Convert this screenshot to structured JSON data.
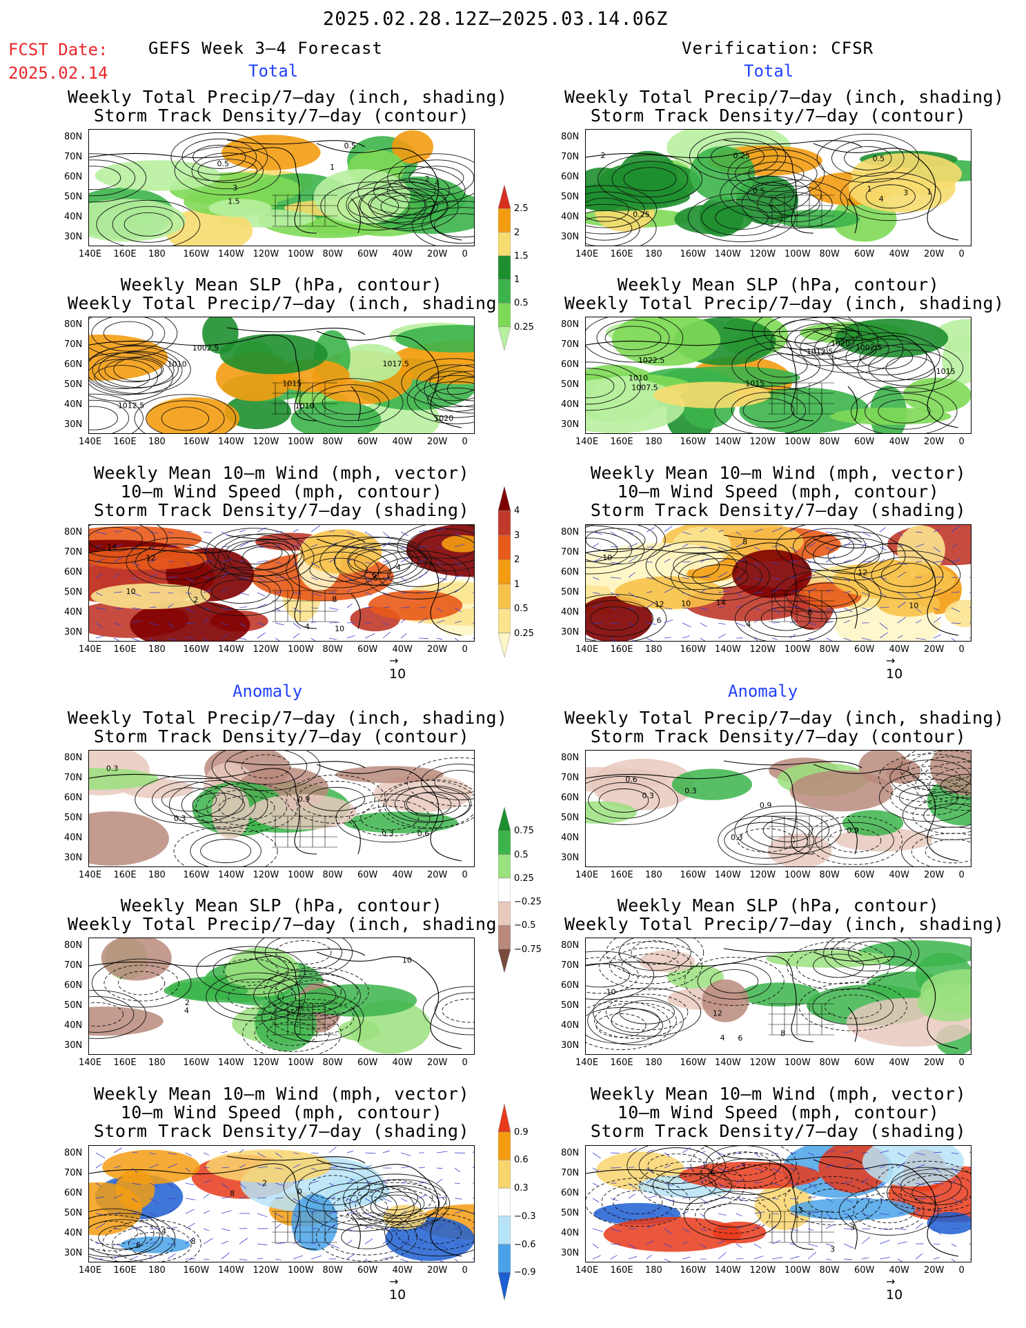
{
  "header": {
    "date_range": "2025.02.28.12Z–2025.03.14.06Z",
    "fcst_label": "FCST Date:",
    "fcst_date": "2025.02.14",
    "left_title": "GEFS Week 3–4 Forecast",
    "right_title": "Verification: CFSR"
  },
  "sections": {
    "total": "Total",
    "anomaly": "Anomaly"
  },
  "panel_titles": {
    "precip_storm": [
      "Weekly Total Precip/7–day (inch, shading)",
      "Storm Track Density/7–day (contour)"
    ],
    "slp_precip": [
      "Weekly Mean SLP (hPa, contour)",
      "Weekly Total Precip/7–day (inch, shading)"
    ],
    "wind_storm": [
      "Weekly Mean 10–m Wind (mph, vector)",
      "10–m Wind Speed (mph, contour)",
      "Storm Track Density/7–day (shading)"
    ]
  },
  "axes": {
    "lat_ticks": [
      "80N",
      "70N",
      "60N",
      "50N",
      "40N",
      "30N"
    ],
    "lon_ticks": [
      "140E",
      "160E",
      "180",
      "160W",
      "140W",
      "120W",
      "100W",
      "80W",
      "60W",
      "40W",
      "20W",
      "0"
    ]
  },
  "colorbars": {
    "precip_total": {
      "labels": [
        "2.5",
        "2",
        "1.5",
        "1",
        "0.5",
        "0.25"
      ],
      "colors": [
        "#d7301f",
        "#f39c12",
        "#f7dc6f",
        "#1e8f2f",
        "#3cb44b",
        "#7ed957",
        "#b8f0a0"
      ]
    },
    "storm_total": {
      "labels": [
        "4",
        "3",
        "2",
        "1",
        "0.5",
        "0.25"
      ],
      "colors": [
        "#7f0000",
        "#c0392b",
        "#e85a1a",
        "#f39c12",
        "#f7c24a",
        "#fbe38f",
        "#fff6c7"
      ]
    },
    "precip_anom": {
      "labels": [
        "0.75",
        "0.5",
        "0.25",
        "−0.25",
        "−0.5",
        "−0.75"
      ],
      "colors": [
        "#1e8f2f",
        "#3cb44b",
        "#9be07f",
        "#ffffff",
        "#e8c9bd",
        "#b98a7b",
        "#7a4a3c"
      ]
    },
    "storm_anom": {
      "labels": [
        "0.9",
        "0.6",
        "0.3",
        "−0.3",
        "−0.6",
        "−0.9"
      ],
      "colors": [
        "#e8391a",
        "#f39c12",
        "#f9d56e",
        "#ffffff",
        "#b6e3f7",
        "#4aa3e8",
        "#1d5fd1"
      ]
    }
  },
  "vector_ref": "10",
  "contour_labels": {
    "p1_left": [
      "0.5",
      "2",
      "1",
      "4",
      "3",
      "2",
      "1.5",
      "0.5"
    ],
    "p2_left": [
      "1010",
      "1002.5",
      "1020",
      "1012.5",
      "1015",
      "1017.5",
      "1010"
    ],
    "p3_left": [
      "6",
      "4",
      "2",
      "12",
      "8",
      "10",
      "14",
      "10",
      "4",
      "6"
    ],
    "p4_left": [
      "0.3",
      "0.6",
      "0.9",
      "0.3",
      "0.3"
    ],
    "p5_left": [
      "4",
      "2",
      "10"
    ],
    "p6_left": [
      "2",
      "0",
      "4",
      "8",
      "6",
      "8"
    ],
    "p1_right": [
      "0.5",
      "0.25",
      "4",
      "2",
      "1",
      "3",
      "1",
      "0.5",
      "0.25"
    ],
    "p2_right": [
      "1020",
      "1015",
      "1022.5",
      "1010",
      "1007.5",
      "1002.5",
      "1012.5",
      "1015"
    ],
    "p3_right": [
      "10",
      "12",
      "8",
      "6",
      "10",
      "8",
      "4",
      "12",
      "14",
      "10"
    ],
    "p4_right": [
      "0.3",
      "0.6",
      "0.9",
      "0.3",
      "0.3",
      "0.9"
    ],
    "p5_right": [
      "4",
      "6",
      "10",
      "12",
      "8"
    ],
    "p6_right": [
      "3",
      "3",
      "6",
      "3",
      "3"
    ]
  }
}
